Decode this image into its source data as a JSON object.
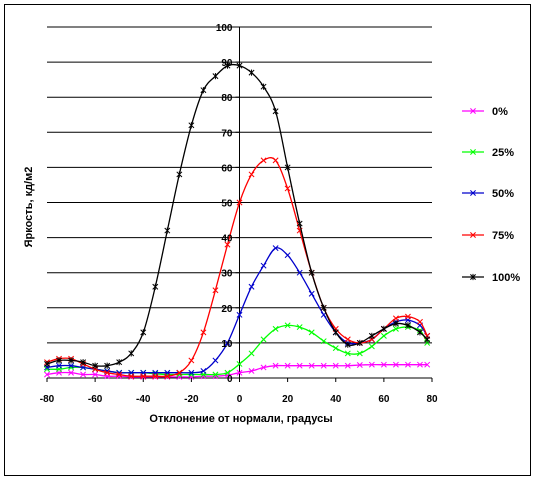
{
  "chart_data": {
    "type": "line",
    "xlabel": "Отклонение от нормали, градусы",
    "ylabel": "Яркость, кд/м2",
    "xlim": [
      -80,
      80
    ],
    "ylim": [
      0,
      100
    ],
    "x_ticks": [
      "-80",
      "-60",
      "-40",
      "-20",
      "0",
      "20",
      "40",
      "60",
      "80"
    ],
    "y_ticks": [
      "0",
      "10",
      "20",
      "30",
      "40",
      "50",
      "60",
      "70",
      "80",
      "90",
      "100"
    ],
    "grid": "horizontal",
    "legend_position": "right",
    "series": [
      {
        "name": "0%",
        "color": "#ff00ff",
        "x": [
          -80,
          -75,
          -70,
          -65,
          -60,
          -55,
          -50,
          -45,
          -40,
          -35,
          -30,
          -25,
          -20,
          -15,
          -10,
          -5,
          0,
          5,
          10,
          15,
          20,
          25,
          30,
          35,
          40,
          45,
          50,
          55,
          60,
          65,
          70,
          75,
          78
        ],
        "y": [
          1,
          1.5,
          1.5,
          1,
          1,
          0.5,
          0.5,
          0.3,
          0.3,
          0.3,
          0.3,
          0.3,
          0.3,
          0.5,
          0.5,
          0.8,
          1.5,
          2,
          3,
          3.5,
          3.5,
          3.5,
          3.5,
          3.5,
          3.5,
          3.5,
          3.7,
          3.8,
          3.8,
          3.8,
          3.8,
          3.8,
          3.8
        ]
      },
      {
        "name": "25%",
        "color": "#00ff00",
        "x": [
          -80,
          -75,
          -70,
          -65,
          -60,
          -55,
          -50,
          -45,
          -40,
          -35,
          -30,
          -25,
          -20,
          -15,
          -10,
          -5,
          0,
          5,
          10,
          15,
          20,
          25,
          30,
          35,
          40,
          45,
          50,
          55,
          60,
          65,
          70,
          75,
          78
        ],
        "y": [
          2.5,
          2.5,
          3,
          3,
          2.5,
          2,
          1.5,
          1.5,
          1.5,
          1.2,
          1,
          1,
          1,
          1,
          1,
          1.5,
          4,
          7,
          11,
          14,
          15,
          14.5,
          13,
          10.5,
          8.5,
          7,
          7,
          9,
          12,
          14,
          14.5,
          13.5,
          10
        ]
      },
      {
        "name": "50%",
        "color": "#0000cc",
        "x": [
          -80,
          -75,
          -70,
          -65,
          -60,
          -55,
          -50,
          -45,
          -40,
          -35,
          -30,
          -25,
          -20,
          -15,
          -10,
          -5,
          0,
          5,
          10,
          15,
          20,
          25,
          30,
          35,
          40,
          45,
          50,
          55,
          60,
          65,
          70,
          75,
          78
        ],
        "y": [
          3,
          3.5,
          3.5,
          3,
          2.5,
          2,
          1.5,
          1.5,
          1.5,
          1.5,
          1.5,
          1.5,
          1.5,
          2,
          5,
          10,
          18,
          26,
          32,
          37,
          35,
          30,
          24,
          18,
          13,
          10,
          10,
          11,
          14,
          16,
          16.5,
          15,
          12
        ]
      },
      {
        "name": "75%",
        "color": "#ff0000",
        "x": [
          -80,
          -75,
          -70,
          -65,
          -60,
          -55,
          -50,
          -45,
          -40,
          -35,
          -30,
          -25,
          -20,
          -15,
          -10,
          -5,
          0,
          5,
          10,
          15,
          20,
          25,
          30,
          35,
          40,
          45,
          50,
          55,
          60,
          65,
          70,
          75,
          78
        ],
        "y": [
          4.5,
          5.5,
          5.5,
          4,
          2.5,
          1.5,
          1,
          0.5,
          0.5,
          0.5,
          0.5,
          1.5,
          5,
          13,
          25,
          38,
          50,
          58,
          62,
          62,
          54,
          42,
          30,
          20,
          14,
          11,
          10,
          11,
          14,
          17,
          17.5,
          16,
          12
        ]
      },
      {
        "name": "100%",
        "color": "#000000",
        "x": [
          -80,
          -75,
          -70,
          -65,
          -60,
          -55,
          -50,
          -45,
          -40,
          -35,
          -30,
          -25,
          -20,
          -15,
          -10,
          -5,
          0,
          5,
          10,
          15,
          20,
          25,
          30,
          35,
          40,
          45,
          50,
          55,
          60,
          65,
          70,
          75,
          78
        ],
        "y": [
          4,
          5,
          5,
          4.5,
          3.5,
          3.5,
          4.5,
          7,
          13,
          26,
          42,
          58,
          72,
          82,
          86,
          89,
          89,
          87,
          83,
          76,
          60,
          44,
          30,
          20,
          13,
          9.5,
          10,
          12,
          14,
          15.5,
          15,
          13,
          11
        ]
      }
    ]
  }
}
